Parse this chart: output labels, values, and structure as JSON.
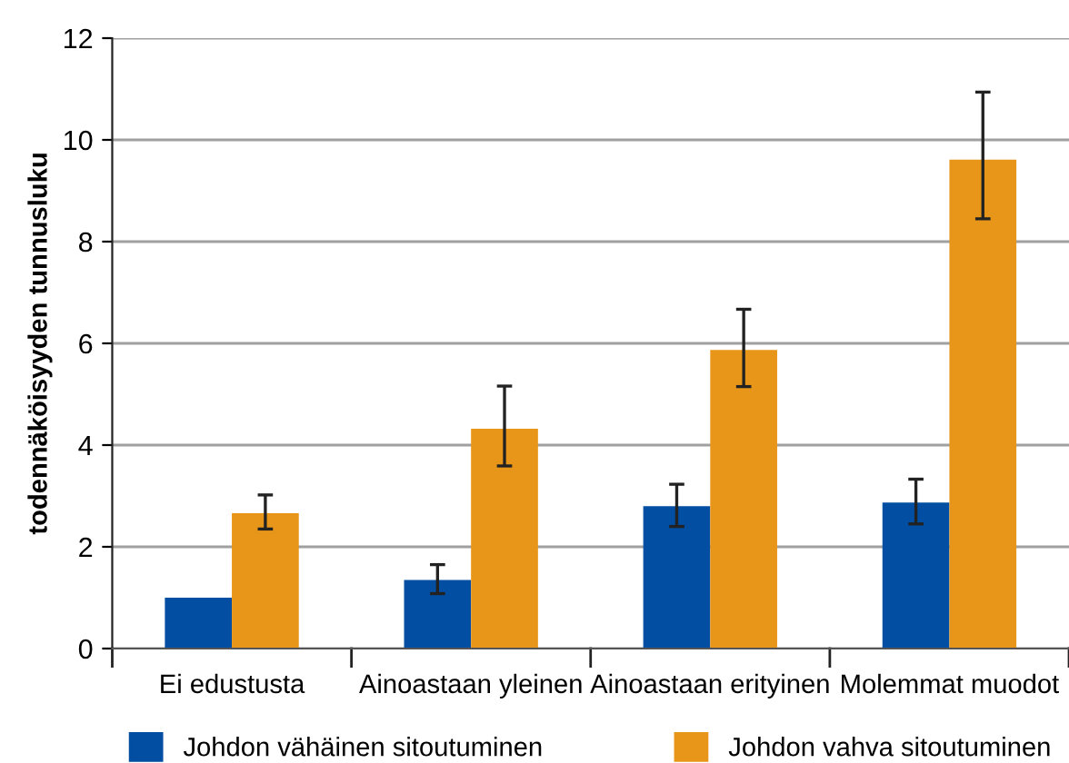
{
  "chart_data": {
    "type": "bar",
    "ylabel": "todennäköisyyden tunnusluku",
    "categories": [
      "Ei edustusta",
      "Ainoastaan yleinen",
      "Ainoastaan erityinen",
      "Molemmat muodot"
    ],
    "series": [
      {
        "name": "Johdon vähäinen sitoutuminen",
        "color": "#024ea2",
        "values": [
          1.0,
          1.35,
          2.8,
          2.87
        ],
        "errors": [
          null,
          [
            1.08,
            1.65
          ],
          [
            2.4,
            3.23
          ],
          [
            2.45,
            3.33
          ]
        ]
      },
      {
        "name": "Johdon vahva sitoutuminen",
        "color": "#e8961a",
        "values": [
          2.66,
          4.32,
          5.87,
          9.61
        ],
        "errors": [
          [
            2.35,
            3.02
          ],
          [
            3.59,
            5.16
          ],
          [
            5.15,
            6.67
          ],
          [
            8.45,
            10.94
          ]
        ]
      }
    ],
    "ylim": [
      0,
      12
    ],
    "yticks": [
      0,
      2,
      4,
      6,
      8,
      10,
      12
    ],
    "grid": "y",
    "legend": "bottom"
  }
}
